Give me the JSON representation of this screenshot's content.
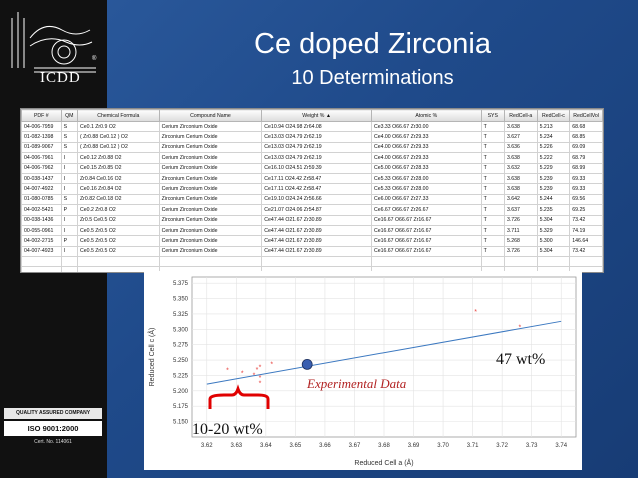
{
  "slide": {
    "title": "Ce doped Zirconia",
    "subtitle": "10 Determinations"
  },
  "logo": {
    "text": "ICDD",
    "reg_mark": "®"
  },
  "badge": {
    "top": "QUALITY ASSURED COMPANY",
    "iso": "ISO 9001:2000",
    "cert": "Cert. No. 114061"
  },
  "table": {
    "columns": [
      "PDF #",
      "QM",
      "Chemical Formula",
      "Compound Name",
      "Weight % ▲",
      "Atomic %",
      "SYS",
      "RedCell-a",
      "RedCell-c",
      "RedCellVol"
    ],
    "rows": [
      [
        "04-006-7959",
        "S",
        "Ce0.1 Zr0.9 O2",
        "Cerium Zirconium Oxide",
        "Ce10.94 O24.98 Zr64.08",
        "Ce3.33 O66.67 Zr30.00",
        "T",
        "3.638",
        "5.213",
        "68.68"
      ],
      [
        "01-082-1398",
        "S",
        "( Zr0.88 Ce0.12 ) O2",
        "Zirconium Cerium Oxide",
        "Ce13.03 O24.79 Zr62.19",
        "Ce4.00 O66.67 Zr29.33",
        "T",
        "3.627",
        "5.234",
        "68.85"
      ],
      [
        "01-089-9067",
        "S",
        "( Zr0.88 Ce0.12 ) O2",
        "Zirconium Cerium Oxide",
        "Ce13.03 O24.79 Zr62.19",
        "Ce4.00 O66.67 Zr29.33",
        "T",
        "3.636",
        "5.226",
        "69.09"
      ],
      [
        "04-006-7961",
        "I",
        "Ce0.12 Zr0.88 O2",
        "Cerium Zirconium Oxide",
        "Ce13.03 O24.79 Zr62.19",
        "Ce4.00 O66.67 Zr29.33",
        "T",
        "3.638",
        "5.222",
        "68.79"
      ],
      [
        "04-006-7962",
        "I",
        "Ce0.15 Zr0.85 O2",
        "Cerium Zirconium Oxide",
        "Ce16.10 O24.51 Zr59.39",
        "Ce5.00 O66.67 Zr28.33",
        "T",
        "3.632",
        "5.229",
        "68.99"
      ],
      [
        "00-038-1437",
        "I",
        "Zr0.84 Ce0.16 O2",
        "Zirconium Cerium Oxide",
        "Ce17.11 O24.42 Zr58.47",
        "Ce5.33 O66.67 Zr28.00",
        "T",
        "3.638",
        "5.239",
        "69.33"
      ],
      [
        "04-007-4922",
        "I",
        "Ce0.16 Zr0.84 O2",
        "Cerium Zirconium Oxide",
        "Ce17.11 O24.42 Zr58.47",
        "Ce5.33 O66.67 Zr28.00",
        "T",
        "3.638",
        "5.239",
        "69.33"
      ],
      [
        "01-080-0785",
        "S",
        "Zr0.82 Ce0.18 O2",
        "Zirconium Cerium Oxide",
        "Ce19.10 O24.24 Zr56.66",
        "Ce6.00 O66.67 Zr27.33",
        "T",
        "3.642",
        "5.244",
        "69.56"
      ],
      [
        "04-002-5421",
        "P",
        "Ce0.2 Zr0.8 O2",
        "Cerium Zirconium Oxide",
        "Ce21.07 O24.06 Zr54.87",
        "Ce6.67 O66.67 Zr26.67",
        "T",
        "3.637",
        "5.235",
        "69.25"
      ],
      [
        "00-038-1436",
        "I",
        "Zr0.5 Ce0.5 O2",
        "Zirconium Cerium Oxide",
        "Ce47.44 O21.67 Zr30.89",
        "Ce16.67 O66.67 Zr16.67",
        "T",
        "3.726",
        "5.304",
        "73.42"
      ],
      [
        "00-055-0961",
        "I",
        "Ce0.5 Zr0.5 O2",
        "Cerium Zirconium Oxide",
        "Ce47.44 O21.67 Zr30.89",
        "Ce16.67 O66.67 Zr16.67",
        "T",
        "3.711",
        "5.329",
        "74.19"
      ],
      [
        "04-002-2715",
        "P",
        "Ce0.5 Zr0.5 O2",
        "Cerium Zirconium Oxide",
        "Ce47.44 O21.67 Zr30.89",
        "Ce16.67 O66.67 Zr16.67",
        "T",
        "5.268",
        "5.300",
        "146.64"
      ],
      [
        "04-007-4923",
        "I",
        "Ce0.5 Zr0.5 O2",
        "Cerium Zirconium Oxide",
        "Ce47.44 O21.67 Zr30.89",
        "Ce16.67 O66.67 Zr16.67",
        "T",
        "3.726",
        "5.304",
        "73.42"
      ]
    ]
  },
  "chart_data": {
    "type": "scatter",
    "xlabel": "Reduced Cell a (Å)",
    "ylabel": "Reduced Cell c (Å)",
    "xlim": [
      3.615,
      3.745
    ],
    "ylim": [
      5.125,
      5.385
    ],
    "xticks": [
      "3.62",
      "3.63",
      "3.64",
      "3.65",
      "3.66",
      "3.67",
      "3.68",
      "3.69",
      "3.70",
      "3.71",
      "3.72",
      "3.73",
      "3.74"
    ],
    "yticks": [
      "5.150",
      "5.175",
      "5.200",
      "5.225",
      "5.250",
      "5.275",
      "5.300",
      "5.325",
      "5.350",
      "5.375"
    ],
    "grid": true,
    "points_color": "#e8403c",
    "points": [
      {
        "x": 3.627,
        "y": 5.234
      },
      {
        "x": 3.632,
        "y": 5.229
      },
      {
        "x": 3.636,
        "y": 5.226
      },
      {
        "x": 3.638,
        "y": 5.222
      },
      {
        "x": 3.638,
        "y": 5.213
      },
      {
        "x": 3.637,
        "y": 5.235
      },
      {
        "x": 3.638,
        "y": 5.239
      },
      {
        "x": 3.642,
        "y": 5.244
      },
      {
        "x": 3.711,
        "y": 5.329
      },
      {
        "x": 3.726,
        "y": 5.304
      }
    ],
    "trendline": {
      "x1": 3.62,
      "y1": 5.211,
      "x2": 3.74,
      "y2": 5.313,
      "color": "#3b78c0"
    },
    "experimental_point": {
      "x": 3.654,
      "y": 5.243,
      "color": "#3a5fb0"
    },
    "annotations": {
      "experimental": "Experimental Data",
      "wt47": "47 wt%",
      "wt1020": "10-20 wt%"
    }
  }
}
